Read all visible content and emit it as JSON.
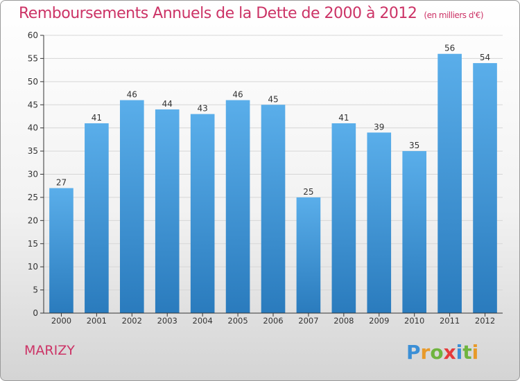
{
  "chart_title": "Remboursements Annuels de la Dette de 2000 à 2012",
  "chart_subtitle": "(en milliers d'€)",
  "commune": "MARIZY",
  "logo_text": "Proxiti",
  "colors": {
    "title": "#cc3366",
    "bar_light": "#5aaeea",
    "bar_dark": "#2a7bbd",
    "logo_p": "#3b8fd6",
    "logo_r": "#e89a2a",
    "logo_o": "#6fb43f",
    "logo_x": "#e53a3a",
    "logo_i": "#3b8fd6",
    "logo_t": "#6fb43f",
    "logo_i2": "#e89a2a"
  },
  "chart_data": {
    "type": "bar",
    "categories": [
      "2000",
      "2001",
      "2002",
      "2003",
      "2004",
      "2005",
      "2006",
      "2007",
      "2008",
      "2009",
      "2010",
      "2011",
      "2012"
    ],
    "values": [
      27,
      41,
      46,
      44,
      43,
      46,
      45,
      25,
      41,
      39,
      35,
      56,
      54
    ],
    "ylim": [
      0,
      60
    ],
    "yticks": [
      0,
      5,
      10,
      15,
      20,
      25,
      30,
      35,
      40,
      45,
      50,
      55,
      60
    ],
    "grid": true
  }
}
